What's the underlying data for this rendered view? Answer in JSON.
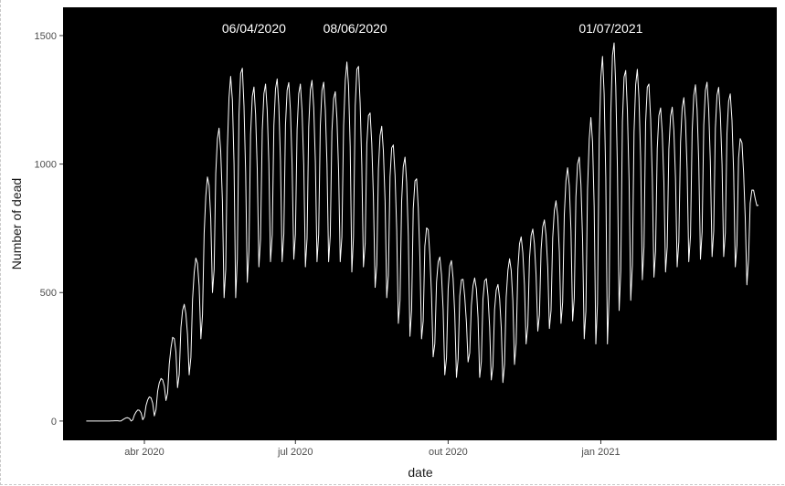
{
  "chart_data": {
    "type": "line",
    "title": "",
    "xlabel": "date",
    "ylabel": "Number of dead",
    "xlim": [
      "2020-02-12",
      "2021-04-17"
    ],
    "ylim": [
      -75,
      1610
    ],
    "x_ticks": [
      {
        "label": "abr 2020",
        "date": "2020-04-01"
      },
      {
        "label": "jul 2020",
        "date": "2020-07-01"
      },
      {
        "label": "out 2020",
        "date": "2020-10-01"
      },
      {
        "label": "jan 2021",
        "date": "2021-01-01"
      }
    ],
    "y_ticks": [
      0,
      500,
      1000,
      1500
    ],
    "panel_background": "#000000",
    "line_color": "#ffffff",
    "grid": false,
    "legend": "none",
    "annotations": [
      {
        "label": "06/04/2020",
        "date": "2020-06-06"
      },
      {
        "label": "08/06/2020",
        "date": "2020-08-06"
      },
      {
        "label": "01/07/2021",
        "date": "2021-01-07"
      }
    ],
    "series": [
      {
        "x": [
          "2020-02-26",
          "2020-03-03",
          "2020-03-10",
          "2020-03-17",
          "2020-03-24",
          "2020-03-31",
          "2020-04-07",
          "2020-04-14",
          "2020-04-21",
          "2020-04-28",
          "2020-05-05",
          "2020-05-12",
          "2020-05-19",
          "2020-05-26",
          "2020-06-02",
          "2020-06-09",
          "2020-06-16",
          "2020-06-23",
          "2020-06-30",
          "2020-07-07",
          "2020-07-14",
          "2020-07-21",
          "2020-07-28",
          "2020-08-04",
          "2020-08-11",
          "2020-08-18",
          "2020-08-25",
          "2020-09-01",
          "2020-09-08",
          "2020-09-15",
          "2020-09-22",
          "2020-09-29",
          "2020-10-06",
          "2020-10-13",
          "2020-10-20",
          "2020-10-27",
          "2020-11-03",
          "2020-11-10",
          "2020-11-17",
          "2020-11-24",
          "2020-12-01",
          "2020-12-08",
          "2020-12-15",
          "2020-12-22",
          "2020-12-29",
          "2021-01-05",
          "2021-01-12",
          "2021-01-19",
          "2021-01-26",
          "2021-02-02",
          "2021-02-09",
          "2021-02-16",
          "2021-02-23",
          "2021-03-02",
          "2021-03-09",
          "2021-03-16",
          "2021-03-23",
          "2021-03-30",
          "2021-04-06"
        ],
        "y_max": [
          0,
          0,
          0,
          2,
          20,
          60,
          120,
          200,
          420,
          480,
          750,
          1100,
          1170,
          1470,
          1300,
          1300,
          1320,
          1340,
          1300,
          1320,
          1330,
          1310,
          1260,
          1500,
          1290,
          1130,
          1160,
          1010,
          1040,
          870,
          650,
          630,
          620,
          500,
          600,
          520,
          540,
          700,
          730,
          760,
          800,
          900,
          1050,
          1010,
          1310,
          1500,
          1450,
          1300,
          1420,
          1230,
          1210,
          1230,
          1280,
          1330,
          1310,
          1290,
          1260,
          950,
          860
        ],
        "y_min": [
          0,
          0,
          0,
          0,
          0,
          5,
          20,
          80,
          130,
          180,
          320,
          500,
          480,
          480,
          540,
          600,
          620,
          620,
          630,
          600,
          620,
          620,
          620,
          580,
          600,
          520,
          480,
          380,
          330,
          320,
          250,
          180,
          170,
          230,
          170,
          160,
          150,
          220,
          300,
          350,
          360,
          380,
          390,
          320,
          300,
          300,
          430,
          470,
          550,
          560,
          580,
          600,
          620,
          630,
          640,
          640,
          600,
          530,
          840
        ]
      }
    ]
  }
}
